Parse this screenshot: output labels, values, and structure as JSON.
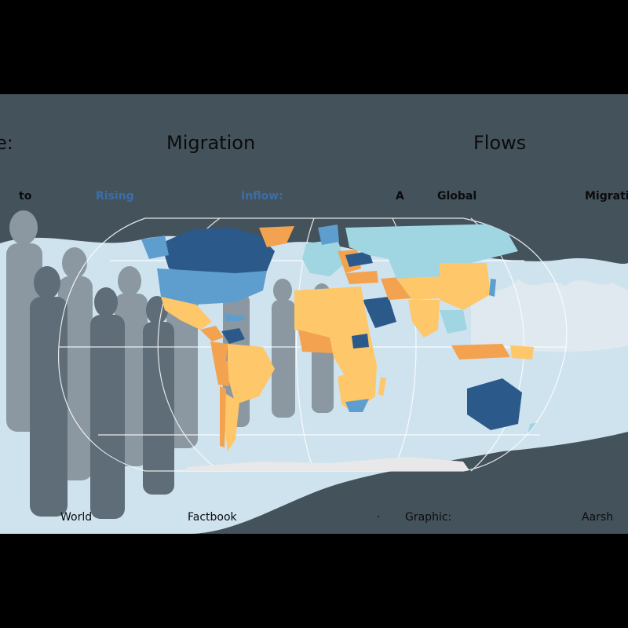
{
  "title": {
    "fragment": "e:",
    "word1": "Migration",
    "word2": "Flows"
  },
  "subtitle": {
    "to": "to",
    "rising": "Rising",
    "inflow": "Inflow:",
    "a": "A",
    "global": "Global",
    "migrati": "Migrati"
  },
  "footer": {
    "world": "World",
    "factbook": "Factbook",
    "dot": "·",
    "graphic": "Graphic:",
    "aarsh": "Aarsh"
  },
  "colors": {
    "background": "#44525c",
    "crowd_light": "#cfe3ef",
    "crowd_mid": "#8b98a1",
    "dark_blue": "#2b5a8a",
    "mid_blue": "#5d9ecf",
    "light_blue": "#9fd6e2",
    "yellow": "#fdc76a",
    "orange": "#f3a24f",
    "antarctica": "#e8e8e8",
    "graticule": "#ffffff",
    "rising_text": "#3a6ea8",
    "inflow_text": "#3a6ea8"
  }
}
